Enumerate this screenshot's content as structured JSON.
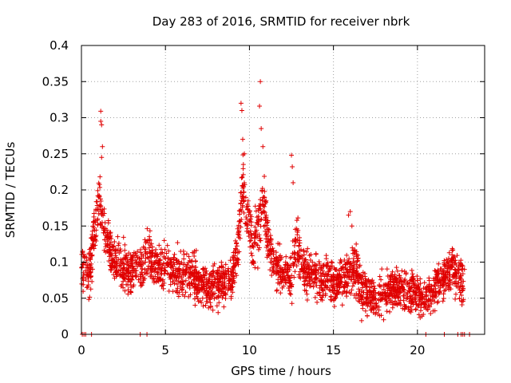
{
  "chart_data": {
    "type": "scatter",
    "title": "Day 283 of 2016, SRMTID for receiver nbrk",
    "xlabel": "GPS time / hours",
    "ylabel": "SRMTID / TECUs",
    "xlim": [
      0,
      24
    ],
    "ylim": [
      0,
      0.4
    ],
    "grid": true,
    "marker": "plus",
    "color": "#e00000",
    "x_ticks": [
      0,
      5,
      10,
      15,
      20
    ],
    "x_tick_labels": [
      "0",
      "5",
      "10",
      "15",
      "20"
    ],
    "y_ticks": [
      0,
      0.05,
      0.1,
      0.15,
      0.2,
      0.25,
      0.3,
      0.35,
      0.4
    ],
    "y_tick_labels": [
      "0",
      "0.05",
      "0.1",
      "0.15",
      "0.2",
      "0.25",
      "0.3",
      "0.35",
      "0.4"
    ],
    "series": [
      {
        "name": "SRMTID",
        "envelope_x": [
          0.0,
          0.2,
          0.4,
          0.6,
          0.8,
          1.0,
          1.2,
          1.4,
          1.7,
          2.0,
          2.5,
          3.0,
          3.5,
          4.0,
          4.5,
          5.0,
          5.5,
          6.0,
          6.5,
          7.0,
          7.5,
          8.0,
          8.5,
          9.0,
          9.3,
          9.6,
          9.9,
          10.2,
          10.5,
          10.8,
          11.1,
          11.5,
          12.0,
          12.5,
          12.8,
          13.2,
          13.6,
          14.0,
          14.5,
          15.0,
          15.5,
          16.0,
          16.3,
          16.6,
          17.0,
          17.5,
          18.0,
          18.5,
          19.0,
          19.5,
          20.0,
          20.4,
          20.8,
          21.2,
          21.6,
          22.0,
          22.2,
          22.5,
          22.8
        ],
        "envelope_y": [
          0.085,
          0.09,
          0.08,
          0.1,
          0.14,
          0.18,
          0.17,
          0.14,
          0.12,
          0.1,
          0.09,
          0.085,
          0.1,
          0.11,
          0.09,
          0.1,
          0.085,
          0.08,
          0.085,
          0.07,
          0.065,
          0.07,
          0.075,
          0.08,
          0.12,
          0.21,
          0.17,
          0.12,
          0.14,
          0.19,
          0.13,
          0.1,
          0.085,
          0.075,
          0.13,
          0.09,
          0.085,
          0.08,
          0.075,
          0.07,
          0.075,
          0.085,
          0.095,
          0.065,
          0.055,
          0.05,
          0.055,
          0.06,
          0.065,
          0.06,
          0.055,
          0.05,
          0.06,
          0.07,
          0.08,
          0.09,
          0.085,
          0.075,
          0.07
        ],
        "spread": 0.035,
        "point_count": 2600,
        "peaks": [
          {
            "x": 1.15,
            "y": 0.309
          },
          {
            "x": 1.15,
            "y": 0.295
          },
          {
            "x": 1.2,
            "y": 0.29
          },
          {
            "x": 1.25,
            "y": 0.26
          },
          {
            "x": 1.2,
            "y": 0.245
          },
          {
            "x": 9.5,
            "y": 0.32
          },
          {
            "x": 9.55,
            "y": 0.31
          },
          {
            "x": 9.6,
            "y": 0.27
          },
          {
            "x": 9.7,
            "y": 0.25
          },
          {
            "x": 10.65,
            "y": 0.35
          },
          {
            "x": 10.6,
            "y": 0.316
          },
          {
            "x": 10.7,
            "y": 0.285
          },
          {
            "x": 10.8,
            "y": 0.26
          },
          {
            "x": 12.5,
            "y": 0.248
          },
          {
            "x": 12.55,
            "y": 0.232
          },
          {
            "x": 12.6,
            "y": 0.21
          },
          {
            "x": 16.0,
            "y": 0.17
          },
          {
            "x": 15.9,
            "y": 0.165
          },
          {
            "x": 16.1,
            "y": 0.15
          }
        ],
        "zero_x": [
          0.05,
          0.15,
          0.25,
          0.6,
          3.5,
          3.9,
          20.5,
          21.6,
          22.4,
          22.6,
          22.7,
          22.8,
          23.1
        ]
      }
    ]
  }
}
